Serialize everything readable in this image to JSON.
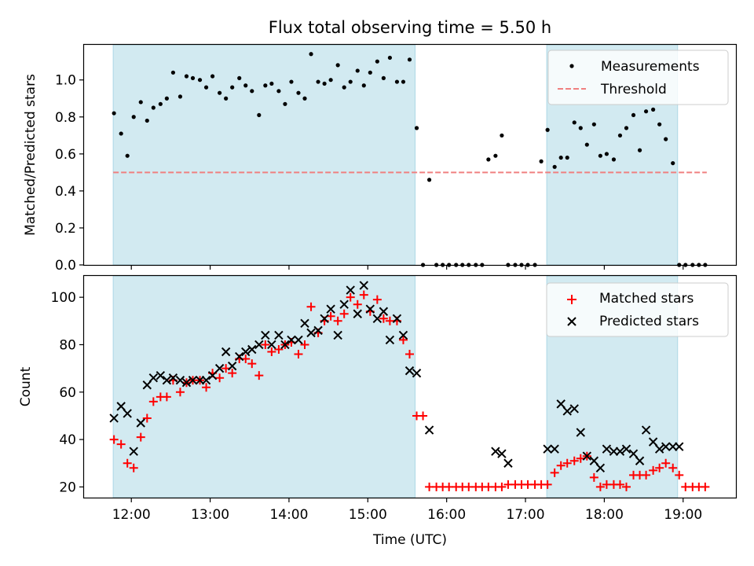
{
  "title": "Flux total observing time = 5.50 h",
  "colors": {
    "shade": "#add8e6",
    "threshold": "#f08080",
    "measurements": "#000000",
    "matched": "#ff0000",
    "predicted": "#000000"
  },
  "chart_data": [
    {
      "type": "scatter",
      "ylabel": "Matched/Predicted stars",
      "xlim": [
        11.4,
        19.67
      ],
      "ylim": [
        0.0,
        1.19
      ],
      "yticks": [
        "0.0",
        "0.2",
        "0.4",
        "0.6",
        "0.8",
        "1.0"
      ],
      "grid": false,
      "legend_position": "top-right",
      "shaded_intervals": [
        [
          11.77,
          15.6
        ],
        [
          17.27,
          18.93
        ]
      ],
      "threshold": {
        "label": "Threshold",
        "value": 0.5,
        "x_range": [
          11.77,
          19.3
        ]
      },
      "series": [
        {
          "name": "Measurements",
          "x": [
            11.78,
            11.87,
            11.95,
            12.03,
            12.12,
            12.2,
            12.28,
            12.37,
            12.45,
            12.53,
            12.62,
            12.7,
            12.78,
            12.87,
            12.95,
            13.03,
            13.12,
            13.2,
            13.28,
            13.37,
            13.45,
            13.53,
            13.62,
            13.7,
            13.78,
            13.87,
            13.95,
            14.03,
            14.12,
            14.2,
            14.28,
            14.37,
            14.45,
            14.53,
            14.62,
            14.7,
            14.78,
            14.87,
            14.95,
            15.03,
            15.12,
            15.2,
            15.28,
            15.37,
            15.45,
            15.53,
            15.62,
            15.7,
            15.78,
            15.87,
            15.95,
            16.03,
            16.12,
            16.2,
            16.28,
            16.37,
            16.45,
            16.53,
            16.62,
            16.7,
            16.78,
            16.87,
            16.95,
            17.03,
            17.12,
            17.2,
            17.28,
            17.37,
            17.45,
            17.53,
            17.62,
            17.7,
            17.78,
            17.87,
            17.95,
            18.03,
            18.12,
            18.2,
            18.28,
            18.37,
            18.45,
            18.53,
            18.62,
            18.7,
            18.78,
            18.87,
            18.95,
            19.03,
            19.12,
            19.2,
            19.28
          ],
          "y": [
            0.82,
            0.71,
            0.59,
            0.8,
            0.88,
            0.78,
            0.85,
            0.87,
            0.9,
            1.04,
            0.91,
            1.02,
            1.01,
            1.0,
            0.96,
            1.02,
            0.93,
            0.9,
            0.96,
            1.01,
            0.97,
            0.94,
            0.81,
            0.97,
            0.98,
            0.94,
            0.87,
            0.99,
            0.93,
            0.9,
            1.14,
            0.99,
            0.98,
            1.0,
            1.08,
            0.96,
            0.99,
            1.05,
            0.97,
            1.04,
            1.1,
            1.01,
            1.12,
            0.99,
            0.99,
            1.11,
            0.74,
            0,
            0.46,
            0,
            0,
            0,
            0,
            0,
            0,
            0,
            0,
            0.57,
            0.59,
            0.7,
            0,
            0,
            0,
            0,
            0,
            0.56,
            0.73,
            0.53,
            0.58,
            0.58,
            0.77,
            0.74,
            0.65,
            0.76,
            0.59,
            0.6,
            0.57,
            0.7,
            0.74,
            0.81,
            0.62,
            0.83,
            0.84,
            0.76,
            0.68,
            0.55,
            0,
            0,
            0,
            0,
            0
          ]
        }
      ]
    },
    {
      "type": "scatter",
      "xlabel": "Time (UTC)",
      "ylabel": "Count",
      "xlim": [
        11.4,
        19.67
      ],
      "ylim": [
        15.5,
        109
      ],
      "xticks": [
        "12:00",
        "13:00",
        "14:00",
        "15:00",
        "16:00",
        "17:00",
        "18:00",
        "19:00"
      ],
      "yticks": [
        "20",
        "40",
        "60",
        "80",
        "100"
      ],
      "grid": false,
      "legend_position": "top-right",
      "shaded_intervals": [
        [
          11.77,
          15.6
        ],
        [
          17.27,
          18.93
        ]
      ],
      "series": [
        {
          "name": "Matched stars",
          "marker": "plus",
          "x": [
            11.78,
            11.87,
            11.95,
            12.03,
            12.12,
            12.2,
            12.28,
            12.37,
            12.45,
            12.53,
            12.62,
            12.7,
            12.78,
            12.87,
            12.95,
            13.03,
            13.12,
            13.2,
            13.28,
            13.37,
            13.45,
            13.53,
            13.62,
            13.7,
            13.78,
            13.87,
            13.95,
            14.03,
            14.12,
            14.2,
            14.28,
            14.37,
            14.45,
            14.53,
            14.62,
            14.7,
            14.78,
            14.87,
            14.95,
            15.03,
            15.12,
            15.2,
            15.28,
            15.37,
            15.45,
            15.53,
            15.62,
            15.7,
            15.78,
            15.87,
            15.95,
            16.03,
            16.12,
            16.2,
            16.28,
            16.37,
            16.45,
            16.53,
            16.62,
            16.7,
            16.78,
            16.87,
            16.95,
            17.03,
            17.12,
            17.2,
            17.28,
            17.37,
            17.45,
            17.53,
            17.62,
            17.7,
            17.78,
            17.87,
            17.95,
            18.03,
            18.12,
            18.2,
            18.28,
            18.37,
            18.45,
            18.53,
            18.62,
            18.7,
            18.78,
            18.87,
            18.95,
            19.03,
            19.12,
            19.2,
            19.28
          ],
          "y": [
            40,
            38,
            30,
            28,
            41,
            49,
            56,
            58,
            58,
            65,
            60,
            64,
            65,
            65,
            62,
            68,
            66,
            70,
            68,
            74,
            74,
            72,
            67,
            80,
            77,
            78,
            80,
            81,
            76,
            80,
            96,
            85,
            90,
            92,
            90,
            93,
            100,
            97,
            101,
            94,
            99,
            91,
            90,
            90,
            82,
            76,
            50,
            50,
            20,
            20,
            20,
            20,
            20,
            20,
            20,
            20,
            20,
            20,
            20,
            20,
            21,
            21,
            21,
            21,
            21,
            21,
            21,
            26,
            29,
            30,
            31,
            32,
            33,
            24,
            20,
            21,
            21,
            21,
            20,
            25,
            25,
            25,
            27,
            28,
            30,
            28,
            25,
            20,
            20,
            20,
            20
          ]
        },
        {
          "name": "Predicted stars",
          "marker": "x",
          "x": [
            11.78,
            11.87,
            11.95,
            12.03,
            12.12,
            12.2,
            12.28,
            12.37,
            12.45,
            12.53,
            12.62,
            12.7,
            12.78,
            12.87,
            12.95,
            13.03,
            13.12,
            13.2,
            13.28,
            13.37,
            13.45,
            13.53,
            13.62,
            13.7,
            13.78,
            13.87,
            13.95,
            14.03,
            14.12,
            14.2,
            14.28,
            14.37,
            14.45,
            14.53,
            14.62,
            14.7,
            14.78,
            14.87,
            14.95,
            15.03,
            15.12,
            15.2,
            15.28,
            15.37,
            15.45,
            15.53,
            15.62,
            15.78,
            16.62,
            16.7,
            16.78,
            17.28,
            17.37,
            17.45,
            17.53,
            17.62,
            17.7,
            17.78,
            17.87,
            17.95,
            18.03,
            18.12,
            18.2,
            18.28,
            18.37,
            18.45,
            18.53,
            18.62,
            18.7,
            18.78,
            18.87,
            18.95
          ],
          "y": [
            49,
            54,
            51,
            35,
            47,
            63,
            66,
            67,
            65,
            66,
            65,
            64,
            65,
            65,
            65,
            67,
            70,
            77,
            71,
            75,
            77,
            78,
            80,
            84,
            80,
            84,
            80,
            82,
            82,
            89,
            85,
            86,
            91,
            95,
            84,
            97,
            103,
            93,
            105,
            95,
            91,
            94,
            82,
            91,
            84,
            69,
            68,
            44,
            35,
            34,
            30,
            36,
            36,
            55,
            52,
            53,
            43,
            33,
            31,
            28,
            36,
            35,
            35,
            36,
            34,
            31,
            44,
            39,
            36,
            37,
            37,
            37
          ]
        }
      ]
    }
  ]
}
